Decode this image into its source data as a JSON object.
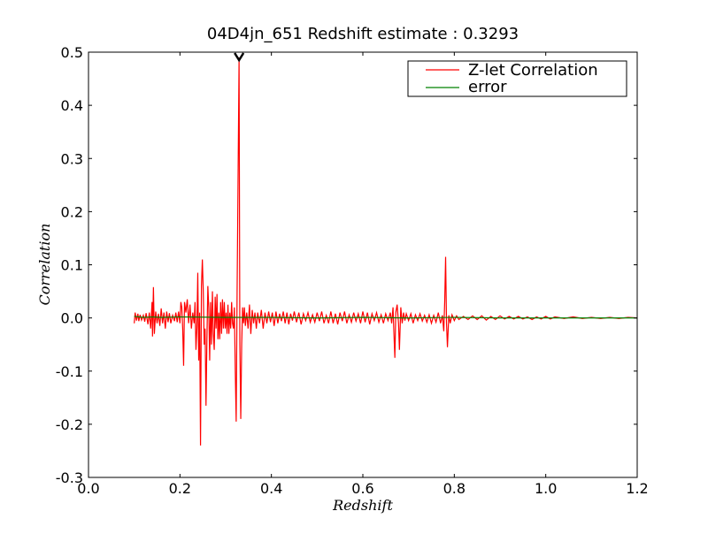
{
  "chart_data": {
    "type": "line",
    "title": "04D4jn_651 Redshift estimate : 0.3293",
    "xlabel": "Redshift",
    "ylabel": "Correlation",
    "xlim": [
      0.0,
      1.2
    ],
    "ylim": [
      -0.3,
      0.5
    ],
    "xticks": [
      0.0,
      0.2,
      0.4,
      0.6,
      0.8,
      1.0,
      1.2
    ],
    "xtick_labels": [
      "0.0",
      "0.2",
      "0.4",
      "0.6",
      "0.8",
      "1.0",
      "1.2"
    ],
    "yticks": [
      -0.3,
      -0.2,
      -0.1,
      0.0,
      0.1,
      0.2,
      0.3,
      0.4,
      0.5
    ],
    "ytick_labels": [
      "-0.3",
      "-0.2",
      "-0.1",
      "0.0",
      "0.1",
      "0.2",
      "0.3",
      "0.4",
      "0.5"
    ],
    "grid": false,
    "legend_position": "top-right",
    "marker": {
      "x": 0.3293,
      "y": 0.5,
      "shape": "chevron-down"
    },
    "series": [
      {
        "name": "Z-let Correlation",
        "color": "#ff0000",
        "points": [
          [
            0.1,
            -0.01
          ],
          [
            0.102,
            0.01
          ],
          [
            0.105,
            -0.005
          ],
          [
            0.108,
            0.008
          ],
          [
            0.11,
            -0.006
          ],
          [
            0.113,
            0.006
          ],
          [
            0.116,
            -0.004
          ],
          [
            0.12,
            0.005
          ],
          [
            0.123,
            -0.007
          ],
          [
            0.126,
            0.009
          ],
          [
            0.13,
            -0.012
          ],
          [
            0.133,
            0.01
          ],
          [
            0.136,
            -0.02
          ],
          [
            0.139,
            0.03
          ],
          [
            0.14,
            -0.035
          ],
          [
            0.142,
            0.058
          ],
          [
            0.144,
            -0.03
          ],
          [
            0.147,
            0.012
          ],
          [
            0.15,
            -0.01
          ],
          [
            0.153,
            0.008
          ],
          [
            0.156,
            -0.015
          ],
          [
            0.159,
            0.018
          ],
          [
            0.162,
            -0.01
          ],
          [
            0.165,
            0.01
          ],
          [
            0.168,
            -0.02
          ],
          [
            0.171,
            0.012
          ],
          [
            0.174,
            -0.008
          ],
          [
            0.177,
            0.009
          ],
          [
            0.18,
            -0.01
          ],
          [
            0.184,
            0.005
          ],
          [
            0.188,
            -0.006
          ],
          [
            0.191,
            0.01
          ],
          [
            0.194,
            -0.008
          ],
          [
            0.197,
            0.012
          ],
          [
            0.2,
            -0.01
          ],
          [
            0.202,
            0.03
          ],
          [
            0.204,
            0.02
          ],
          [
            0.206,
            -0.02
          ],
          [
            0.208,
            -0.09
          ],
          [
            0.21,
            0.03
          ],
          [
            0.213,
            0.01
          ],
          [
            0.216,
            0.035
          ],
          [
            0.219,
            -0.01
          ],
          [
            0.222,
            0.025
          ],
          [
            0.225,
            -0.02
          ],
          [
            0.228,
            0.01
          ],
          [
            0.231,
            -0.01
          ],
          [
            0.233,
            0.03
          ],
          [
            0.235,
            -0.06
          ],
          [
            0.237,
            -0.02
          ],
          [
            0.239,
            0.085
          ],
          [
            0.241,
            -0.08
          ],
          [
            0.243,
            0.01
          ],
          [
            0.245,
            -0.24
          ],
          [
            0.247,
            0.06
          ],
          [
            0.249,
            0.11
          ],
          [
            0.251,
            0.05
          ],
          [
            0.253,
            -0.05
          ],
          [
            0.255,
            -0.02
          ],
          [
            0.257,
            -0.165
          ],
          [
            0.259,
            -0.04
          ],
          [
            0.261,
            0.06
          ],
          [
            0.263,
            0.02
          ],
          [
            0.265,
            -0.08
          ],
          [
            0.267,
            0.03
          ],
          [
            0.269,
            -0.05
          ],
          [
            0.271,
            0.05
          ],
          [
            0.273,
            -0.03
          ],
          [
            0.275,
            -0.06
          ],
          [
            0.277,
            0.04
          ],
          [
            0.279,
            -0.02
          ],
          [
            0.281,
            0.045
          ],
          [
            0.283,
            -0.04
          ],
          [
            0.285,
            0.01
          ],
          [
            0.287,
            -0.04
          ],
          [
            0.289,
            0.03
          ],
          [
            0.291,
            -0.03
          ],
          [
            0.293,
            0.035
          ],
          [
            0.295,
            -0.02
          ],
          [
            0.297,
            0.03
          ],
          [
            0.299,
            -0.02
          ],
          [
            0.301,
            0.01
          ],
          [
            0.303,
            -0.03
          ],
          [
            0.305,
            0.025
          ],
          [
            0.307,
            -0.03
          ],
          [
            0.309,
            0.01
          ],
          [
            0.311,
            -0.02
          ],
          [
            0.313,
            0.03
          ],
          [
            0.315,
            -0.01
          ],
          [
            0.317,
            -0.02
          ],
          [
            0.319,
            0.02
          ],
          [
            0.321,
            -0.1
          ],
          [
            0.323,
            -0.195
          ],
          [
            0.325,
            0.05
          ],
          [
            0.3293,
            0.49
          ],
          [
            0.331,
            -0.05
          ],
          [
            0.333,
            -0.19
          ],
          [
            0.335,
            -0.05
          ],
          [
            0.337,
            0.02
          ],
          [
            0.339,
            -0.01
          ],
          [
            0.341,
            0.02
          ],
          [
            0.343,
            -0.015
          ],
          [
            0.346,
            0.01
          ],
          [
            0.349,
            -0.02
          ],
          [
            0.352,
            0.025
          ],
          [
            0.355,
            -0.03
          ],
          [
            0.358,
            0.015
          ],
          [
            0.361,
            -0.01
          ],
          [
            0.364,
            0.01
          ],
          [
            0.367,
            -0.02
          ],
          [
            0.37,
            0.01
          ],
          [
            0.374,
            -0.01
          ],
          [
            0.378,
            0.015
          ],
          [
            0.382,
            -0.02
          ],
          [
            0.386,
            0.01
          ],
          [
            0.39,
            -0.01
          ],
          [
            0.394,
            0.012
          ],
          [
            0.398,
            -0.008
          ],
          [
            0.402,
            0.01
          ],
          [
            0.406,
            -0.015
          ],
          [
            0.41,
            0.012
          ],
          [
            0.414,
            -0.01
          ],
          [
            0.418,
            0.008
          ],
          [
            0.422,
            -0.006
          ],
          [
            0.426,
            0.012
          ],
          [
            0.43,
            -0.01
          ],
          [
            0.434,
            0.01
          ],
          [
            0.438,
            -0.012
          ],
          [
            0.442,
            0.008
          ],
          [
            0.446,
            -0.005
          ],
          [
            0.45,
            0.012
          ],
          [
            0.455,
            -0.008
          ],
          [
            0.46,
            0.01
          ],
          [
            0.465,
            -0.012
          ],
          [
            0.47,
            0.008
          ],
          [
            0.475,
            -0.005
          ],
          [
            0.48,
            0.01
          ],
          [
            0.485,
            -0.008
          ],
          [
            0.49,
            0.006
          ],
          [
            0.495,
            -0.008
          ],
          [
            0.5,
            0.01
          ],
          [
            0.505,
            -0.006
          ],
          [
            0.51,
            0.012
          ],
          [
            0.515,
            -0.01
          ],
          [
            0.52,
            0.005
          ],
          [
            0.525,
            -0.01
          ],
          [
            0.53,
            0.012
          ],
          [
            0.535,
            -0.01
          ],
          [
            0.54,
            0.008
          ],
          [
            0.545,
            -0.012
          ],
          [
            0.55,
            0.01
          ],
          [
            0.555,
            -0.006
          ],
          [
            0.56,
            0.012
          ],
          [
            0.565,
            -0.01
          ],
          [
            0.57,
            0.006
          ],
          [
            0.575,
            -0.008
          ],
          [
            0.58,
            0.01
          ],
          [
            0.585,
            -0.006
          ],
          [
            0.59,
            0.008
          ],
          [
            0.595,
            -0.01
          ],
          [
            0.6,
            0.012
          ],
          [
            0.605,
            -0.008
          ],
          [
            0.61,
            0.01
          ],
          [
            0.615,
            -0.012
          ],
          [
            0.62,
            0.008
          ],
          [
            0.625,
            -0.005
          ],
          [
            0.63,
            0.01
          ],
          [
            0.635,
            -0.008
          ],
          [
            0.64,
            0.006
          ],
          [
            0.645,
            -0.01
          ],
          [
            0.65,
            0.008
          ],
          [
            0.655,
            -0.005
          ],
          [
            0.66,
            0.01
          ],
          [
            0.663,
            -0.01
          ],
          [
            0.666,
            0.02
          ],
          [
            0.668,
            -0.03
          ],
          [
            0.67,
            -0.075
          ],
          [
            0.672,
            0.01
          ],
          [
            0.675,
            0.025
          ],
          [
            0.678,
            -0.01
          ],
          [
            0.68,
            -0.06
          ],
          [
            0.683,
            0.02
          ],
          [
            0.686,
            -0.01
          ],
          [
            0.689,
            0.01
          ],
          [
            0.692,
            -0.005
          ],
          [
            0.695,
            0.008
          ],
          [
            0.7,
            -0.005
          ],
          [
            0.705,
            0.008
          ],
          [
            0.71,
            -0.01
          ],
          [
            0.715,
            0.006
          ],
          [
            0.72,
            -0.005
          ],
          [
            0.725,
            0.008
          ],
          [
            0.73,
            -0.006
          ],
          [
            0.735,
            0.005
          ],
          [
            0.74,
            -0.008
          ],
          [
            0.745,
            0.006
          ],
          [
            0.75,
            -0.01
          ],
          [
            0.755,
            0.005
          ],
          [
            0.76,
            -0.008
          ],
          [
            0.765,
            0.01
          ],
          [
            0.77,
            -0.01
          ],
          [
            0.774,
            0.005
          ],
          [
            0.777,
            -0.025
          ],
          [
            0.779,
            0.03
          ],
          [
            0.781,
            0.115
          ],
          [
            0.783,
            -0.01
          ],
          [
            0.785,
            -0.055
          ],
          [
            0.788,
            0.005
          ],
          [
            0.791,
            -0.01
          ],
          [
            0.795,
            0.006
          ],
          [
            0.8,
            -0.005
          ],
          [
            0.805,
            0.004
          ],
          [
            0.81,
            -0.003
          ],
          [
            0.82,
            0.003
          ],
          [
            0.83,
            -0.003
          ],
          [
            0.84,
            0.004
          ],
          [
            0.85,
            -0.003
          ],
          [
            0.86,
            0.004
          ],
          [
            0.87,
            -0.004
          ],
          [
            0.88,
            0.003
          ],
          [
            0.89,
            -0.003
          ],
          [
            0.9,
            0.004
          ],
          [
            0.91,
            -0.002
          ],
          [
            0.92,
            0.003
          ],
          [
            0.93,
            -0.002
          ],
          [
            0.94,
            0.003
          ],
          [
            0.95,
            -0.002
          ],
          [
            0.96,
            0.002
          ],
          [
            0.97,
            -0.003
          ],
          [
            0.98,
            0.002
          ],
          [
            0.99,
            -0.002
          ],
          [
            1.0,
            0.003
          ],
          [
            1.01,
            -0.002
          ],
          [
            1.02,
            0.002
          ],
          [
            1.04,
            -0.001
          ],
          [
            1.06,
            0.002
          ],
          [
            1.08,
            -0.001
          ],
          [
            1.1,
            0.001
          ],
          [
            1.12,
            -0.001
          ],
          [
            1.14,
            0.001
          ],
          [
            1.16,
            -0.001
          ],
          [
            1.18,
            0.001
          ],
          [
            1.2,
            0.0
          ]
        ]
      },
      {
        "name": "error",
        "color": "#008000",
        "points": [
          [
            0.1,
            0.003
          ],
          [
            0.12,
            0.001
          ],
          [
            0.14,
            0.002
          ],
          [
            0.16,
            0.001
          ],
          [
            0.2,
            0.002
          ],
          [
            0.3,
            0.001
          ],
          [
            0.4,
            0.001
          ],
          [
            0.5,
            0.0
          ],
          [
            0.6,
            0.001
          ],
          [
            0.7,
            0.0
          ],
          [
            0.8,
            0.001
          ],
          [
            0.9,
            0.0
          ],
          [
            1.0,
            0.0
          ],
          [
            1.1,
            0.0
          ],
          [
            1.2,
            0.0
          ]
        ]
      }
    ]
  }
}
